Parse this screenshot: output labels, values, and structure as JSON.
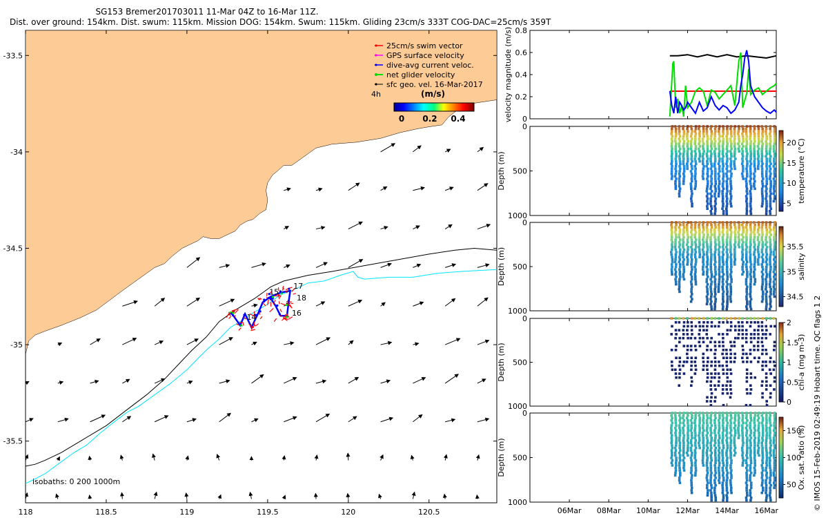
{
  "header": {
    "title_line1": "SG153 Bremer201703011 11-Mar 04Z to 16-Mar 11Z.",
    "title_line2": "Dist. over ground: 154km. Dist. swum: 115km. Mission DOG: 154km. Swum: 115km. Gliding 23cm/s 333T COG-DAC=25cm/s 359T"
  },
  "stamp": "© IMOS 15-Feb-2019 02:49:19 Hobart time. QC flags 1  2",
  "colors": {
    "land": "#fccb96",
    "swim": "#ff0000",
    "gps": "#ff00ff",
    "dac": "#0000ff",
    "net": "#00dd00",
    "geo": "#000000",
    "isobath200": "#00e5ff"
  },
  "chart_data": [
    {
      "type": "scatter",
      "name": "map",
      "xlim": [
        118,
        120.92
      ],
      "ylim": [
        -35.82,
        -33.37
      ],
      "x_ticks": [
        118,
        118.5,
        119,
        119.5,
        120,
        120.5
      ],
      "x_tick_labels": [
        "118",
        "118.5",
        "119",
        "119.5",
        "120",
        "120.5"
      ],
      "y_ticks": [
        -33.5,
        -34,
        -34.5,
        -35,
        -35.5
      ],
      "y_tick_labels": [
        "-33.5",
        "-34",
        "-34.5",
        "-35",
        "-35.5"
      ],
      "legend": [
        {
          "label": "25cm/s swim vector",
          "color": "#ff0000"
        },
        {
          "label": "GPS surface velocity",
          "color": "#ff00ff"
        },
        {
          "label": "dive-avg current veloc.",
          "color": "#0000ff"
        },
        {
          "label": "net glider velocity",
          "color": "#00dd00"
        },
        {
          "label": "sfc geo. vel. 16-Mar-2017",
          "color": "#000000"
        }
      ],
      "legend_position": "top-right",
      "colorbar": {
        "label": "(m/s)",
        "ticks": [
          "0",
          "0.2",
          "0.4"
        ],
        "range": [
          0,
          0.5
        ],
        "time_label": "4h"
      },
      "isobaths_note": "isobaths: 0   200  1000m",
      "day_markers": [
        {
          "label": "14",
          "lon": 119.37,
          "lat": -34.87
        },
        {
          "label": "15",
          "lon": 119.51,
          "lat": -34.74
        },
        {
          "label": "16",
          "lon": 119.65,
          "lat": -34.85
        },
        {
          "label": "17",
          "lon": 119.66,
          "lat": -34.71
        },
        {
          "label": "18",
          "lon": 119.68,
          "lat": -34.77
        }
      ],
      "coastline": [
        [
          118.0,
          -35.05
        ],
        [
          118.02,
          -34.98
        ],
        [
          118.06,
          -34.95
        ],
        [
          118.12,
          -34.93
        ],
        [
          118.22,
          -34.9
        ],
        [
          118.34,
          -34.86
        ],
        [
          118.44,
          -34.82
        ],
        [
          118.52,
          -34.77
        ],
        [
          118.6,
          -34.72
        ],
        [
          118.7,
          -34.66
        ],
        [
          118.8,
          -34.6
        ],
        [
          118.86,
          -34.58
        ],
        [
          118.91,
          -34.54
        ],
        [
          118.97,
          -34.5
        ],
        [
          119.02,
          -34.48
        ],
        [
          119.07,
          -34.46
        ],
        [
          119.1,
          -34.44
        ],
        [
          119.15,
          -34.45
        ],
        [
          119.2,
          -34.45
        ],
        [
          119.25,
          -34.43
        ],
        [
          119.3,
          -34.41
        ],
        [
          119.33,
          -34.38
        ],
        [
          119.37,
          -34.36
        ],
        [
          119.41,
          -34.35
        ],
        [
          119.45,
          -34.32
        ],
        [
          119.49,
          -34.3
        ],
        [
          119.5,
          -34.25
        ],
        [
          119.49,
          -34.2
        ],
        [
          119.5,
          -34.16
        ],
        [
          119.53,
          -34.12
        ],
        [
          119.56,
          -34.1
        ],
        [
          119.6,
          -34.07
        ],
        [
          119.65,
          -34.07
        ],
        [
          119.7,
          -34.04
        ],
        [
          119.75,
          -34.01
        ],
        [
          119.8,
          -33.98
        ],
        [
          119.9,
          -33.96
        ],
        [
          120.05,
          -33.95
        ],
        [
          120.2,
          -33.93
        ],
        [
          120.32,
          -33.9
        ],
        [
          120.43,
          -33.88
        ],
        [
          120.5,
          -33.87
        ],
        [
          120.58,
          -33.86
        ],
        [
          120.62,
          -33.82
        ],
        [
          120.68,
          -33.78
        ],
        [
          120.76,
          -33.75
        ],
        [
          120.92,
          -33.73
        ]
      ],
      "isobath_1000": [
        [
          118.0,
          -35.63
        ],
        [
          118.06,
          -35.62
        ],
        [
          118.12,
          -35.6
        ],
        [
          118.22,
          -35.56
        ],
        [
          118.36,
          -35.49
        ],
        [
          118.5,
          -35.42
        ],
        [
          118.64,
          -35.33
        ],
        [
          118.75,
          -35.26
        ],
        [
          118.86,
          -35.18
        ],
        [
          118.95,
          -35.1
        ],
        [
          119.03,
          -35.03
        ],
        [
          119.12,
          -34.96
        ],
        [
          119.2,
          -34.88
        ],
        [
          119.3,
          -34.82
        ],
        [
          119.42,
          -34.76
        ],
        [
          119.52,
          -34.7
        ],
        [
          119.6,
          -34.67
        ],
        [
          119.75,
          -34.64
        ],
        [
          119.9,
          -34.62
        ],
        [
          120.1,
          -34.59
        ],
        [
          120.3,
          -34.56
        ],
        [
          120.5,
          -34.53
        ],
        [
          120.66,
          -34.51
        ],
        [
          120.78,
          -34.5
        ],
        [
          120.92,
          -34.51
        ]
      ],
      "isobath_200": [
        [
          118.0,
          -35.72
        ],
        [
          118.05,
          -35.7
        ],
        [
          118.12,
          -35.67
        ],
        [
          118.2,
          -35.62
        ],
        [
          118.3,
          -35.56
        ],
        [
          118.38,
          -35.52
        ],
        [
          118.46,
          -35.46
        ],
        [
          118.55,
          -35.4
        ],
        [
          118.63,
          -35.35
        ],
        [
          118.7,
          -35.32
        ],
        [
          118.8,
          -35.26
        ],
        [
          118.9,
          -35.2
        ],
        [
          119.0,
          -35.13
        ],
        [
          119.07,
          -35.07
        ],
        [
          119.13,
          -35.02
        ],
        [
          119.2,
          -34.97
        ],
        [
          119.27,
          -34.91
        ],
        [
          119.33,
          -34.88
        ],
        [
          119.4,
          -34.84
        ],
        [
          119.5,
          -34.79
        ],
        [
          119.58,
          -34.74
        ],
        [
          119.65,
          -34.72
        ],
        [
          119.75,
          -34.68
        ],
        [
          119.85,
          -34.67
        ],
        [
          119.95,
          -34.64
        ],
        [
          120.03,
          -34.62
        ],
        [
          120.06,
          -34.65
        ],
        [
          120.1,
          -34.66
        ],
        [
          120.25,
          -34.65
        ],
        [
          120.4,
          -34.65
        ],
        [
          120.55,
          -34.63
        ],
        [
          120.7,
          -34.62
        ],
        [
          120.92,
          -34.61
        ]
      ],
      "vector_grid": {
        "lon": [
          118.0,
          118.2,
          118.4,
          118.6,
          118.8,
          119.0,
          119.2,
          119.4,
          119.6,
          119.8,
          120.0,
          120.2,
          120.4,
          120.6,
          120.8
        ],
        "lat": [
          -34.0,
          -34.2,
          -34.4,
          -34.6,
          -34.8,
          -35.0,
          -35.2,
          -35.4,
          -35.6,
          -35.8
        ]
      }
    },
    {
      "type": "line",
      "name": "velocity",
      "ylabel": "velocity magnitude (m/s)",
      "ylim": [
        0,
        0.8
      ],
      "y_ticks": [
        0,
        0.2,
        0.4,
        0.6,
        0.8
      ],
      "y_tick_labels": [
        "0",
        "0.2",
        "0.4",
        "0.6",
        "0.8"
      ],
      "xlim": [
        4,
        16.5
      ],
      "series": [
        {
          "name": "sfc geo. vel.",
          "color": "#000000",
          "x": [
            11.1,
            11.5,
            12.0,
            12.5,
            13.0,
            13.5,
            14.0,
            14.5,
            15.0,
            15.5,
            16.0,
            16.5
          ],
          "values": [
            0.57,
            0.57,
            0.58,
            0.56,
            0.58,
            0.56,
            0.58,
            0.56,
            0.57,
            0.56,
            0.55,
            0.57
          ]
        },
        {
          "name": "swim",
          "color": "#ff0000",
          "x": [
            11.1,
            16.5
          ],
          "values": [
            0.25,
            0.25
          ]
        },
        {
          "name": "net glider velocity",
          "color": "#00dd00",
          "x": [
            11.1,
            11.15,
            11.25,
            11.3,
            11.4,
            11.5,
            11.6,
            11.7,
            11.8,
            11.9,
            12.0,
            12.2,
            12.4,
            12.6,
            12.8,
            13.0,
            13.2,
            13.4,
            13.6,
            13.8,
            14.0,
            14.2,
            14.4,
            14.6,
            14.7,
            14.8,
            15.0,
            15.1,
            15.2,
            15.4,
            15.6,
            15.8,
            16.0,
            16.2,
            16.4,
            16.5
          ],
          "values": [
            0.02,
            0.18,
            0.5,
            0.52,
            0.1,
            0.18,
            0.05,
            0.12,
            0.02,
            0.3,
            0.1,
            0.15,
            0.25,
            0.28,
            0.25,
            0.12,
            0.26,
            0.24,
            0.18,
            0.22,
            0.26,
            0.3,
            0.12,
            0.52,
            0.6,
            0.1,
            0.23,
            0.45,
            0.22,
            0.26,
            0.28,
            0.22,
            0.25,
            0.28,
            0.3,
            0.32
          ]
        },
        {
          "name": "dive-avg current",
          "color": "#0000ff",
          "x": [
            11.1,
            11.2,
            11.3,
            11.4,
            11.5,
            11.6,
            11.7,
            11.8,
            11.9,
            12.0,
            12.2,
            12.4,
            12.6,
            12.8,
            13.0,
            13.2,
            13.4,
            13.6,
            13.8,
            14.0,
            14.2,
            14.4,
            14.6,
            14.7,
            14.8,
            14.9,
            15.0,
            15.1,
            15.2,
            15.4,
            15.6,
            15.8,
            16.0,
            16.2,
            16.4,
            16.5
          ],
          "values": [
            0.25,
            0.12,
            0.05,
            0.2,
            0.05,
            0.15,
            0.12,
            0.08,
            0.1,
            0.15,
            0.1,
            0.05,
            0.15,
            0.07,
            0.1,
            0.2,
            0.12,
            0.08,
            0.12,
            0.1,
            0.05,
            0.08,
            0.15,
            0.3,
            0.4,
            0.55,
            0.62,
            0.52,
            0.3,
            0.2,
            0.15,
            0.1,
            0.07,
            0.05,
            0.08,
            0.06
          ]
        }
      ]
    },
    {
      "type": "scatter",
      "name": "temperature",
      "ylabel": "Depth (m)",
      "ylim": [
        1000,
        0
      ],
      "y_ticks": [
        0,
        500,
        1000
      ],
      "y_tick_labels": [
        "0",
        "500",
        "1000"
      ],
      "colorbar": {
        "label": "temperature (°C)",
        "ticks": [
          5,
          10,
          15,
          20
        ],
        "tick_labels": [
          "5",
          "10",
          "15",
          "20"
        ],
        "range": [
          3,
          23
        ]
      },
      "dive_days": [
        11.2,
        11.4,
        11.6,
        11.8,
        12.0,
        12.2,
        12.4,
        12.6,
        12.8,
        13.0,
        13.2,
        13.4,
        13.6,
        13.8,
        14.0,
        14.2,
        14.4,
        14.6,
        14.8,
        15.0,
        15.2,
        15.4,
        15.6,
        15.8,
        16.0,
        16.2,
        16.4
      ],
      "max_depth": [
        600,
        700,
        800,
        650,
        500,
        900,
        700,
        400,
        600,
        950,
        1000,
        1000,
        800,
        1000,
        1000,
        900,
        500,
        300,
        600,
        1000,
        1000,
        700,
        500,
        900,
        1000,
        1000,
        850
      ]
    },
    {
      "type": "scatter",
      "name": "salinity",
      "ylabel": "Depth (m)",
      "ylim": [
        1000,
        0
      ],
      "y_ticks": [
        0,
        500,
        1000
      ],
      "y_tick_labels": [
        "0",
        "500",
        "1000"
      ],
      "colorbar": {
        "label": "salinity",
        "ticks": [
          34.5,
          35,
          35.5
        ],
        "tick_labels": [
          "34.5",
          "35",
          "35.5"
        ],
        "range": [
          34.3,
          35.9
        ]
      }
    },
    {
      "type": "scatter",
      "name": "chlorophyll",
      "ylabel": "Depth (m)",
      "ylim": [
        1000,
        0
      ],
      "y_ticks": [
        0,
        500,
        1000
      ],
      "y_tick_labels": [
        "0",
        "500",
        "1000"
      ],
      "colorbar": {
        "label": "chl-a (mg m-3)",
        "ticks": [
          0,
          0.5,
          1,
          1.5,
          2
        ],
        "tick_labels": [
          "0",
          "0.5",
          "1",
          "1.5",
          "2"
        ],
        "range": [
          0,
          2
        ]
      }
    },
    {
      "type": "scatter",
      "name": "oxygen",
      "ylabel": "Depth (m)",
      "ylim": [
        1000,
        0
      ],
      "y_ticks": [
        0,
        500,
        1000
      ],
      "y_tick_labels": [
        "0",
        "500",
        "1000"
      ],
      "colorbar": {
        "label": "Ox. sat. ratio (%)",
        "ticks": [
          50,
          100,
          150
        ],
        "tick_labels": [
          "50",
          "100",
          "150"
        ],
        "range": [
          25,
          175
        ]
      },
      "x_ticks": [
        6,
        8,
        10,
        12,
        14,
        16
      ],
      "x_tick_labels": [
        "06Mar",
        "08Mar",
        "10Mar",
        "12Mar",
        "14Mar",
        "16Mar"
      ]
    }
  ]
}
